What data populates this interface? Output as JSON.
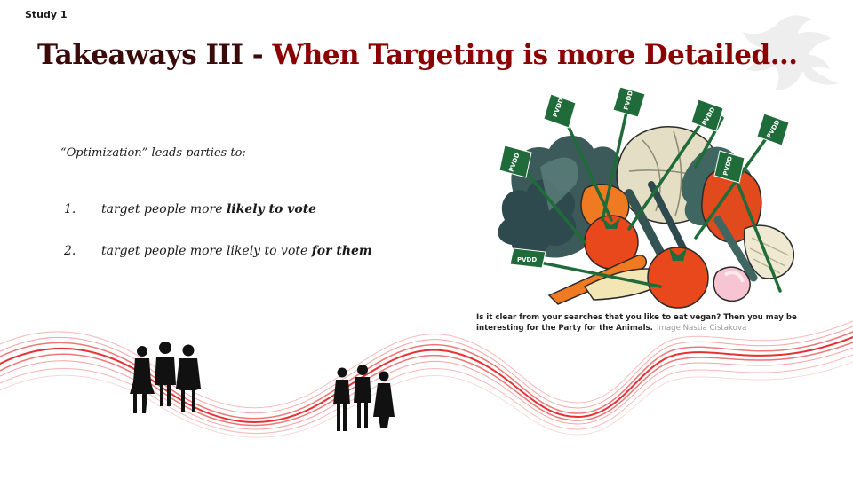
{
  "header": {
    "study_label": "Study 1"
  },
  "title": {
    "part1": "Takeaways III - ",
    "part2": "When Targeting is more Detailed..."
  },
  "intro": "“Optimization” leads parties to:",
  "list": [
    {
      "num": "1.",
      "text_before": "target people more ",
      "emphasis": "likely to vote",
      "text_after": ""
    },
    {
      "num": "2.",
      "text_before": "target people more likely to vote ",
      "emphasis": "for them",
      "text_after": ""
    }
  ],
  "image": {
    "arrow_label": "PVDD",
    "caption_main": "Is it clear from your searches that you like to eat vegan? Then you may be interesting for the Party for the Animals.",
    "caption_credit": "Image Nastia Cistakova"
  },
  "colors": {
    "title_dark": "#3b0a0a",
    "title_accent": "#8b0000",
    "wave_red": "#e21b1b",
    "arrow_green": "#1f6b3a"
  }
}
